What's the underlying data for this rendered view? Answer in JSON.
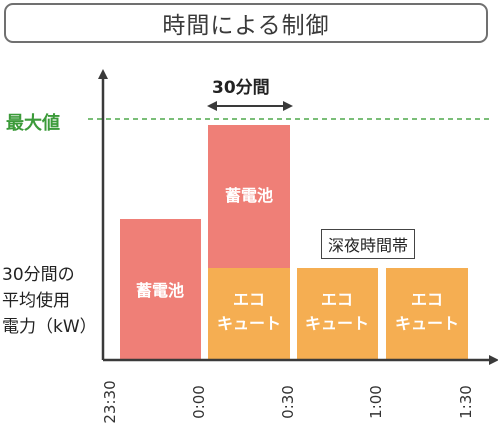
{
  "title": "時間による制御",
  "max_label": "最大値",
  "duration_label": "30分間",
  "night_label": "深夜時間帯",
  "ylabel_lines": [
    "30分間の",
    "平均使用",
    "電力（kW）"
  ],
  "ticks": [
    "23:30",
    "0:00",
    "0:30",
    "1:00",
    "1:30"
  ],
  "blocks": {
    "chikudenchi_1": "蓄電池",
    "chikudenchi_2": "蓄電池",
    "ecocute_line1": "エコ",
    "ecocute_line2": "キュート"
  },
  "colors": {
    "battery": "#ef7f77",
    "ecocute": "#f5ae52",
    "max_line": "#4fa84c",
    "axis": "#3a3a3a"
  }
}
